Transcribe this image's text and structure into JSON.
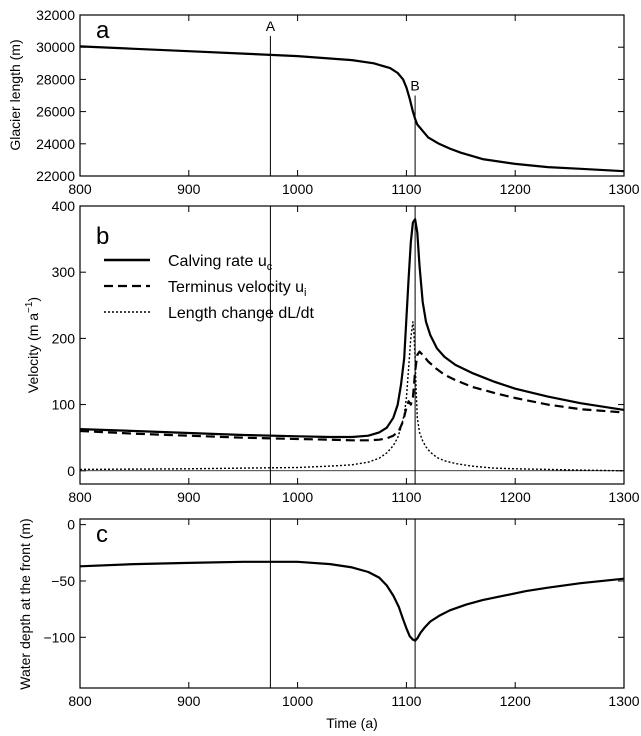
{
  "chart_data": [
    {
      "panel": "a",
      "type": "line",
      "xlim": [
        800,
        1300
      ],
      "ylim": [
        22000,
        32000
      ],
      "xticks": [
        800,
        900,
        1000,
        1100,
        1200,
        1300
      ],
      "yticks": [
        22000,
        24000,
        26000,
        28000,
        30000,
        32000
      ],
      "xlabel": "",
      "ylabel": "Glacier length (m)",
      "markers": [
        {
          "label": "A",
          "x": 975,
          "y_top": 30700
        },
        {
          "label": "B",
          "x": 1108,
          "y_top": 27000
        }
      ],
      "series": [
        {
          "style": "solid",
          "x": [
            800,
            850,
            900,
            950,
            1000,
            1050,
            1070,
            1085,
            1092,
            1097,
            1100,
            1103,
            1106,
            1108,
            1110,
            1115,
            1120,
            1130,
            1140,
            1150,
            1170,
            1200,
            1230,
            1260,
            1300
          ],
          "y": [
            30050,
            29900,
            29750,
            29600,
            29450,
            29200,
            29000,
            28700,
            28400,
            28000,
            27500,
            26800,
            26000,
            25550,
            25200,
            24800,
            24400,
            24000,
            23700,
            23450,
            23050,
            22750,
            22550,
            22450,
            22300
          ]
        }
      ]
    },
    {
      "panel": "b",
      "type": "line",
      "xlim": [
        800,
        1300
      ],
      "ylim": [
        -20,
        400
      ],
      "xticks": [
        800,
        900,
        1000,
        1100,
        1200,
        1300
      ],
      "yticks": [
        0,
        100,
        200,
        300,
        400
      ],
      "xlabel": "",
      "ylabel": "Velocity  (m a",
      "ylabel_sup": "−1",
      "ylabel_end": ")",
      "zero_line": true,
      "marker_x": [
        975,
        1108
      ],
      "legend_position": "top-left",
      "series": [
        {
          "name": "Calving rate u",
          "sub": "c",
          "style": "solid",
          "x": [
            800,
            850,
            900,
            950,
            1000,
            1030,
            1050,
            1065,
            1075,
            1082,
            1088,
            1092,
            1095,
            1098,
            1100,
            1102,
            1104,
            1106,
            1108,
            1110,
            1112,
            1115,
            1118,
            1122,
            1128,
            1135,
            1145,
            1160,
            1180,
            1200,
            1230,
            1260,
            1300
          ],
          "y": [
            63,
            60,
            57,
            54,
            52,
            51,
            51,
            53,
            58,
            65,
            80,
            100,
            130,
            170,
            230,
            290,
            345,
            375,
            380,
            360,
            310,
            255,
            225,
            205,
            185,
            172,
            160,
            148,
            135,
            124,
            112,
            102,
            92
          ]
        },
        {
          "name": "Terminus velocity u",
          "sub": "i",
          "style": "dashed",
          "x": [
            800,
            850,
            900,
            950,
            1000,
            1030,
            1050,
            1065,
            1075,
            1082,
            1088,
            1093,
            1097,
            1100,
            1102,
            1104,
            1106,
            1108,
            1110,
            1112,
            1115,
            1120,
            1127,
            1135,
            1145,
            1160,
            1180,
            1200,
            1230,
            1260,
            1300
          ],
          "y": [
            60,
            56,
            53,
            50,
            48,
            47,
            46,
            46,
            47,
            49,
            53,
            60,
            75,
            95,
            105,
            100,
            110,
            150,
            175,
            180,
            175,
            165,
            155,
            145,
            137,
            127,
            118,
            110,
            100,
            93,
            88
          ]
        },
        {
          "name": "Length change dL/dt",
          "style": "dotted",
          "x": [
            800,
            900,
            950,
            1000,
            1030,
            1050,
            1065,
            1075,
            1082,
            1088,
            1092,
            1095,
            1098,
            1100,
            1102,
            1104,
            1106,
            1107,
            1108,
            1109,
            1110,
            1112,
            1115,
            1118,
            1122,
            1128,
            1135,
            1145,
            1160,
            1180,
            1200,
            1230,
            1260,
            1300
          ],
          "y": [
            2,
            3,
            4,
            5,
            7,
            9,
            13,
            19,
            27,
            38,
            50,
            65,
            85,
            110,
            155,
            200,
            225,
            205,
            170,
            120,
            80,
            58,
            45,
            36,
            28,
            20,
            15,
            11,
            7,
            4,
            3,
            2,
            1,
            0
          ]
        }
      ]
    },
    {
      "panel": "c",
      "type": "line",
      "xlim": [
        800,
        1300
      ],
      "ylim": [
        -145,
        5
      ],
      "xticks": [
        800,
        900,
        1000,
        1100,
        1200,
        1300
      ],
      "yticks": [
        -100,
        -50,
        0
      ],
      "xlabel": "Time (a)",
      "ylabel": "Water depth at the front  (m)",
      "marker_x": [
        975,
        1108
      ],
      "series": [
        {
          "style": "solid",
          "x": [
            800,
            850,
            900,
            950,
            975,
            1000,
            1030,
            1050,
            1065,
            1075,
            1082,
            1088,
            1093,
            1097,
            1100,
            1103,
            1106,
            1108,
            1110,
            1113,
            1117,
            1122,
            1130,
            1140,
            1155,
            1170,
            1190,
            1210,
            1230,
            1260,
            1290,
            1300
          ],
          "y": [
            -37,
            -35,
            -34,
            -33,
            -33,
            -33,
            -35,
            -38,
            -42,
            -47,
            -54,
            -63,
            -73,
            -84,
            -92,
            -99,
            -102,
            -103,
            -101,
            -96,
            -91,
            -86,
            -81,
            -76,
            -71,
            -67,
            -63,
            -59,
            -56,
            -52,
            -49,
            -48
          ]
        }
      ]
    }
  ],
  "text": {
    "panel_a": "a",
    "panel_b": "b",
    "panel_c": "c",
    "x_tick_labels": [
      "800",
      "900",
      "1000",
      "1100",
      "1200",
      "1300"
    ],
    "a_y_tick_labels": [
      "22000",
      "24000",
      "26000",
      "28000",
      "30000",
      "32000"
    ],
    "b_y_tick_labels": [
      "0",
      "100",
      "200",
      "300",
      "400"
    ],
    "c_y_tick_labels": [
      "−100",
      "−50",
      "0"
    ]
  }
}
